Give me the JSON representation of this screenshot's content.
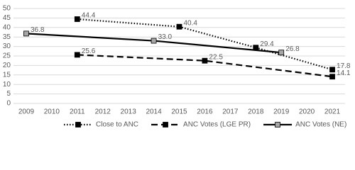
{
  "chart_data": {
    "type": "line",
    "xlim": [
      2008.5,
      2021.5
    ],
    "xticks": [
      2009,
      2010,
      2011,
      2012,
      2013,
      2014,
      2015,
      2016,
      2017,
      2018,
      2019,
      2020,
      2021
    ],
    "ylim": [
      0,
      50
    ],
    "yticks": [
      0,
      5,
      10,
      15,
      20,
      25,
      30,
      35,
      40,
      45,
      50
    ],
    "grid": true,
    "series": [
      {
        "name": "Close to ANC",
        "color": "#000000",
        "marker_color": "#000000",
        "line_style": "dotted",
        "x": [
          2011,
          2015,
          2018,
          2021
        ],
        "values": [
          44.4,
          40.4,
          29.4,
          17.8
        ]
      },
      {
        "name": "ANC Votes (LGE PR)",
        "color": "#000000",
        "marker_color": "#000000",
        "line_style": "dashed",
        "x": [
          2011,
          2016,
          2021
        ],
        "values": [
          25.6,
          22.5,
          14.1
        ]
      },
      {
        "name": "ANC Votes (NE)",
        "color": "#000000",
        "marker_color": "#a6a6a6",
        "line_style": "solid",
        "x": [
          2009,
          2014,
          2019
        ],
        "values": [
          36.8,
          33.0,
          26.8
        ],
        "value_labels": [
          "36.8",
          "33.0",
          "26.8"
        ]
      }
    ]
  }
}
